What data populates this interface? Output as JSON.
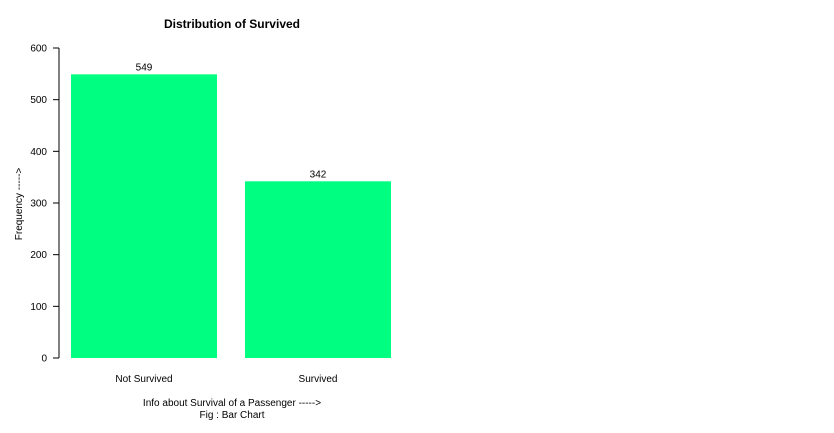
{
  "chart_data": {
    "type": "bar",
    "title": "Distribution of Survived",
    "xlabel": "Info about Survival of a Passenger ----->",
    "caption": "Fig : Bar Chart",
    "ylabel": "Frequency ----->",
    "categories": [
      "Not Survived",
      "Survived"
    ],
    "values": [
      549,
      342
    ],
    "data_labels": [
      "549",
      "342"
    ],
    "ylim": [
      0,
      600
    ],
    "yticks": [
      0,
      100,
      200,
      300,
      400,
      500,
      600
    ],
    "bar_color": "#00ff80",
    "grid": false,
    "legend": "none"
  }
}
